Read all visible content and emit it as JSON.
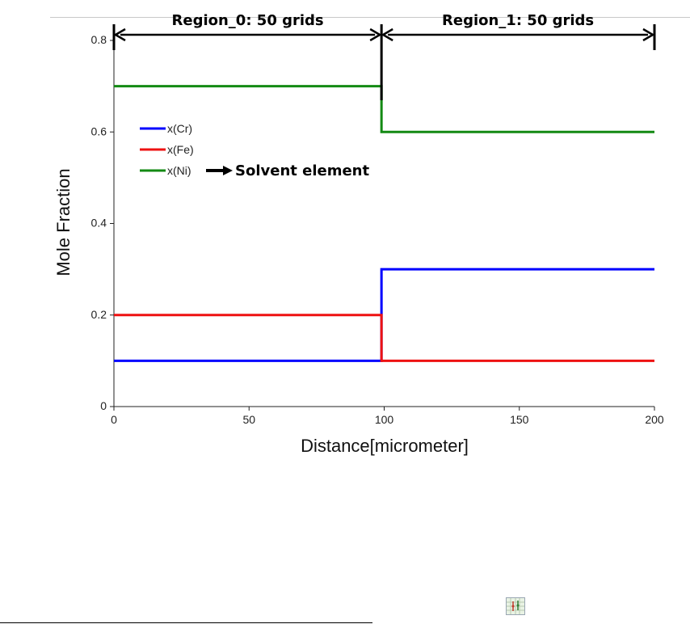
{
  "chart_data": {
    "type": "line",
    "xlabel": "Distance[micrometer]",
    "ylabel": "Mole Fraction",
    "xlim": [
      0,
      200
    ],
    "ylim": [
      0,
      0.8
    ],
    "xticks": [
      0,
      50,
      100,
      150,
      200
    ],
    "yticks": [
      0,
      0.2,
      0.4,
      0.6,
      0.8
    ],
    "xtick_labels": [
      "0",
      "50",
      "100",
      "150",
      "200"
    ],
    "ytick_labels": [
      "0",
      "0.2",
      "0.4",
      "0.6",
      "0.8"
    ],
    "grid": false,
    "legend_position": "left",
    "series": [
      {
        "name": "x(Cr)",
        "color": "#0000ff",
        "x": [
          0,
          99,
          99,
          200
        ],
        "y": [
          0.1,
          0.1,
          0.3,
          0.3
        ]
      },
      {
        "name": "x(Fe)",
        "color": "#ee1111",
        "x": [
          0,
          99,
          99,
          200
        ],
        "y": [
          0.2,
          0.2,
          0.1,
          0.1
        ]
      },
      {
        "name": "x(Ni)",
        "color": "#138a13",
        "x": [
          0,
          99,
          99,
          200
        ],
        "y": [
          0.7,
          0.7,
          0.6,
          0.6
        ]
      }
    ],
    "regions": [
      {
        "label": "Region_0: 50 grids",
        "x_range": [
          0,
          99
        ]
      },
      {
        "label": "Region_1: 50 grids",
        "x_range": [
          99,
          200
        ]
      }
    ],
    "annotations": [
      {
        "text": "Solvent element",
        "points_to": "x(Ni)"
      }
    ]
  },
  "toolbar": {
    "icon": "grid-chart-icon"
  }
}
